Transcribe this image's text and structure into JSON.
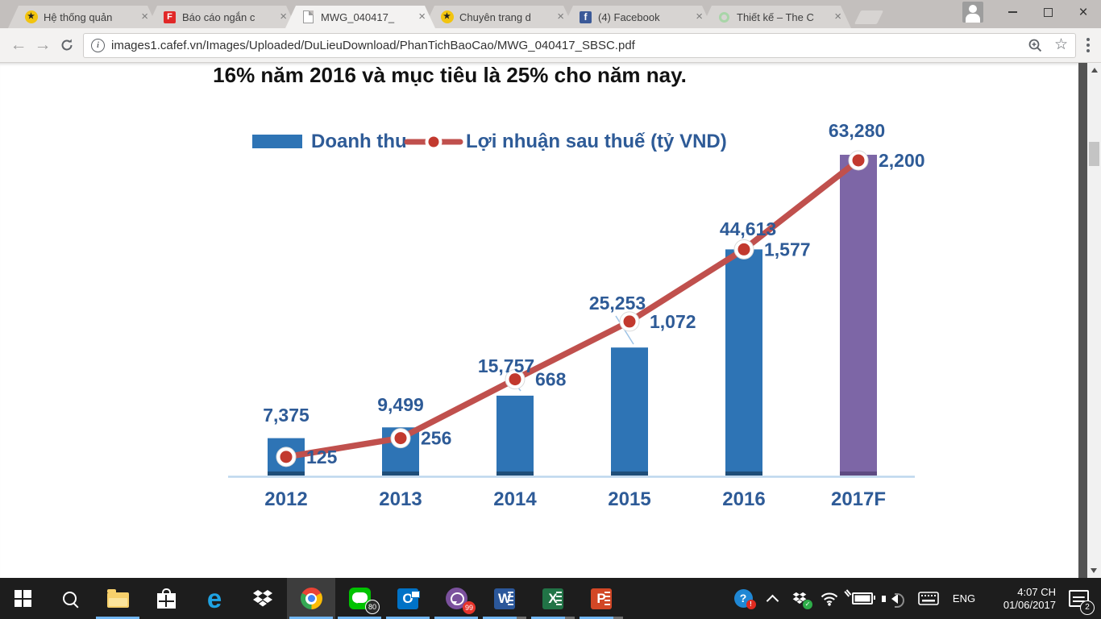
{
  "browser": {
    "tabs": [
      {
        "title": "Hệ thống quản",
        "icon": "runner-yellow-icon",
        "active": false
      },
      {
        "title": "Báo cáo ngắn c",
        "icon": "flipboard-icon",
        "active": false
      },
      {
        "title": "MWG_040417_",
        "icon": "document-icon",
        "active": true
      },
      {
        "title": "Chuyên trang d",
        "icon": "runner-yellow-icon",
        "active": false
      },
      {
        "title": "(4) Facebook",
        "icon": "facebook-icon",
        "active": false
      },
      {
        "title": "Thiết kế – The C",
        "icon": "green-ring-icon",
        "active": false
      }
    ],
    "url": "images1.cafef.vn/Images/Uploaded/DuLieuDownload/PhanTichBaoCao/MWG_040417_SBSC.pdf",
    "icons": {
      "close_tab": "×",
      "back": "←",
      "forward": "→",
      "star": "☆",
      "info": "i"
    }
  },
  "pdf": {
    "heading": "16% năm 2016 và mục tiêu là 25% cho năm nay."
  },
  "chart_data": {
    "type": "bar+line combo",
    "categories": [
      "2012",
      "2013",
      "2014",
      "2015",
      "2016",
      "2017F"
    ],
    "series": [
      {
        "name": "Doanh thu",
        "type": "bar",
        "values": [
          7375,
          9499,
          15757,
          25253,
          44613,
          63280
        ],
        "labels": [
          "7,375",
          "9,499",
          "15,757",
          "25,253",
          "44,613",
          "63,280"
        ],
        "bar_color": "#2E74B5",
        "forecast_bar_color": "#7D66A6",
        "bar_base_color": "#1F4E79",
        "forecast_base_color": "#5E4B82"
      },
      {
        "name": "Lợi nhuận sau thuế (tỷ VND)",
        "type": "line",
        "values": [
          125,
          256,
          668,
          1072,
          1577,
          2200
        ],
        "labels": [
          "125",
          "256",
          "668",
          "1,072",
          "1,577",
          "2,200"
        ],
        "line_color": "#C0504D",
        "marker_color": "#C2392E"
      }
    ],
    "unit": "tỷ VND",
    "legend_position": "top",
    "grid": false,
    "last_category_forecast": true,
    "label_color": "#2E5B97",
    "axis_color": "#BDD7EE",
    "leader_line_color": "#9DC3E6"
  },
  "taskbar": {
    "line_badge": "80",
    "viber_badge": "99",
    "language": "ENG",
    "time": "4:07 CH",
    "date": "01/06/2017",
    "notification_badge": "2"
  }
}
